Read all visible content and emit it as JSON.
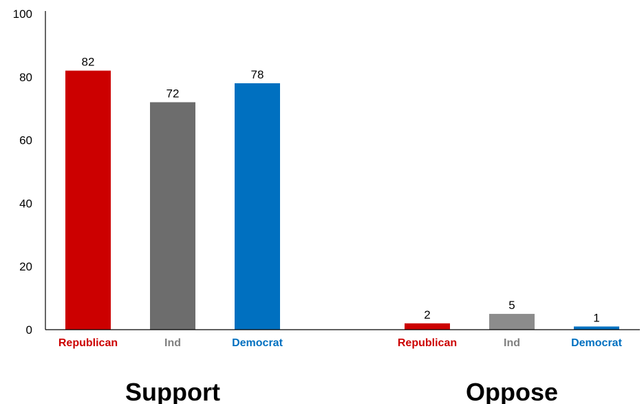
{
  "chart_data": {
    "type": "bar",
    "ylim": [
      0,
      100
    ],
    "yticks": [
      0,
      20,
      40,
      60,
      80,
      100
    ],
    "grid": false,
    "legend": "none",
    "groups": [
      {
        "name": "Support",
        "bars": [
          {
            "category": "Republican",
            "value": 82,
            "color": "#cc0000"
          },
          {
            "category": "Ind",
            "value": 72,
            "color": "#6d6d6d"
          },
          {
            "category": "Democrat",
            "value": 78,
            "color": "#0070c0"
          }
        ]
      },
      {
        "name": "Oppose",
        "bars": [
          {
            "category": "Republican",
            "value": 2,
            "color": "#cc0000"
          },
          {
            "category": "Ind",
            "value": 5,
            "color": "#8c8c8c"
          },
          {
            "category": "Democrat",
            "value": 1,
            "color": "#0070c0"
          }
        ]
      }
    ],
    "label_colors": {
      "Republican": "#cc0000",
      "Ind": "#808080",
      "Democrat": "#0070c0"
    }
  }
}
